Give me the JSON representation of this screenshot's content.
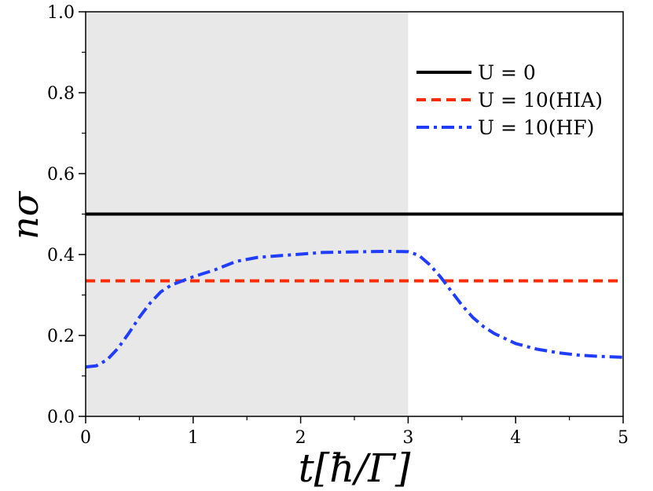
{
  "chart_data": {
    "type": "line",
    "xlabel": "t[ħ/Γ]",
    "ylabel": "nσ",
    "xlim": [
      0,
      5
    ],
    "ylim": [
      0.0,
      1.0
    ],
    "x_ticks": [
      "0",
      "1",
      "2",
      "3",
      "4",
      "5"
    ],
    "y_ticks": [
      "0.0",
      "0.2",
      "0.4",
      "0.6",
      "0.8",
      "1.0"
    ],
    "shaded_region": {
      "x": [
        0,
        3
      ],
      "color": "#e8e8e8"
    },
    "legend_position": "top-right",
    "grid": false,
    "series": [
      {
        "name": "U = 0",
        "color": "#000000",
        "style": "solid",
        "x": [
          0,
          5
        ],
        "y": [
          0.5,
          0.5
        ]
      },
      {
        "name": "U = 10(HIA)",
        "color": "#ff2a00",
        "style": "dashed",
        "x": [
          0,
          5
        ],
        "y": [
          0.335,
          0.335
        ]
      },
      {
        "name": "U = 10(HF)",
        "color": "#1f3cff",
        "style": "dashdot",
        "x": [
          0,
          0.1,
          0.2,
          0.3,
          0.4,
          0.5,
          0.6,
          0.7,
          0.8,
          0.9,
          1.0,
          1.2,
          1.4,
          1.6,
          1.8,
          2.0,
          2.2,
          2.4,
          2.6,
          2.8,
          3.0,
          3.1,
          3.2,
          3.3,
          3.4,
          3.5,
          3.6,
          3.7,
          3.8,
          4.0,
          4.2,
          4.4,
          4.6,
          4.8,
          5.0
        ],
        "y": [
          0.122,
          0.125,
          0.14,
          0.168,
          0.205,
          0.245,
          0.28,
          0.308,
          0.325,
          0.335,
          0.345,
          0.362,
          0.383,
          0.393,
          0.397,
          0.401,
          0.405,
          0.406,
          0.407,
          0.408,
          0.407,
          0.398,
          0.375,
          0.345,
          0.31,
          0.275,
          0.245,
          0.222,
          0.205,
          0.18,
          0.166,
          0.157,
          0.151,
          0.148,
          0.146
        ]
      }
    ]
  }
}
